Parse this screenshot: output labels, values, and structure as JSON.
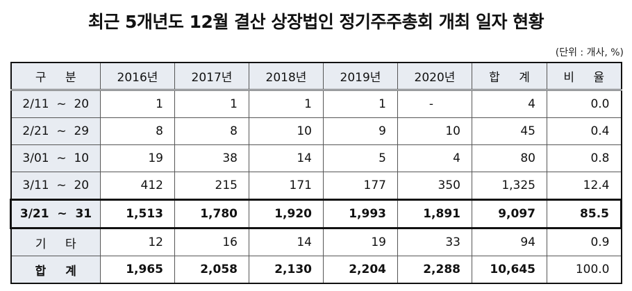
{
  "title": "최근 5개년도 12월 결산 상장법인 정기주주총회 개최 일자 현황",
  "unit": "(단위 : 개사, %)",
  "table": {
    "headers": [
      "구 분",
      "2016년",
      "2017년",
      "2018년",
      "2019년",
      "2020년",
      "합 계",
      "비 율"
    ],
    "rows": [
      {
        "label": "2/11  ~  20",
        "values": [
          "1",
          "1",
          "1",
          "1",
          "-",
          "4",
          "0.0"
        ]
      },
      {
        "label": "2/21  ~  29",
        "values": [
          "8",
          "8",
          "10",
          "9",
          "10",
          "45",
          "0.4"
        ]
      },
      {
        "label": "3/01  ~  10",
        "values": [
          "19",
          "38",
          "14",
          "5",
          "4",
          "80",
          "0.8"
        ]
      },
      {
        "label": "3/11  ~  20",
        "values": [
          "412",
          "215",
          "171",
          "177",
          "350",
          "1,325",
          "12.4"
        ]
      },
      {
        "label": "3/21  ~  31",
        "values": [
          "1,513",
          "1,780",
          "1,920",
          "1,993",
          "1,891",
          "9,097",
          "85.5"
        ],
        "highlighted": true
      },
      {
        "label": "기 타",
        "values": [
          "12",
          "16",
          "14",
          "19",
          "33",
          "94",
          "0.9"
        ]
      },
      {
        "label": "합 계",
        "values": [
          "1,965",
          "2,058",
          "2,130",
          "2,204",
          "2,288",
          "10,645",
          "100.0"
        ],
        "total": true
      }
    ]
  },
  "colors": {
    "header_bg": "#e8ecf2",
    "border": "#111111"
  }
}
